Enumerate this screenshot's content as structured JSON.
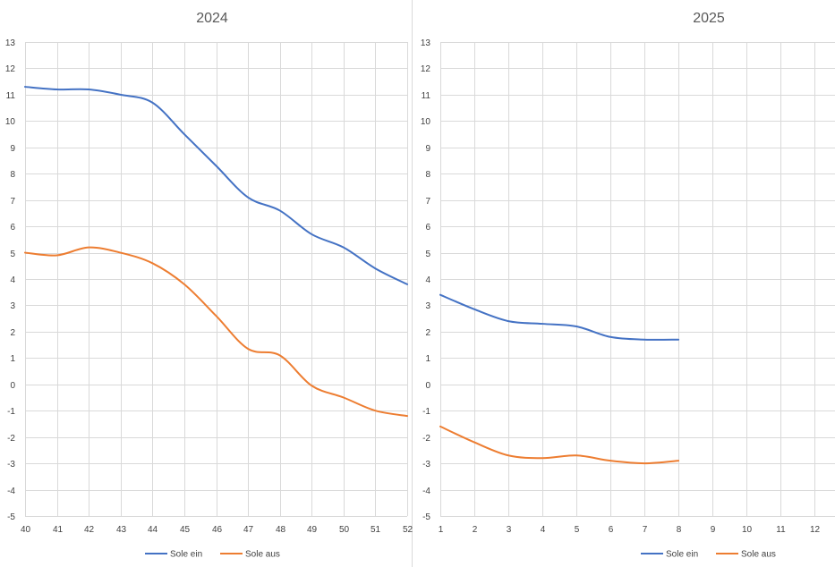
{
  "chart_data": [
    {
      "type": "line",
      "title": "2024",
      "xlabel": "",
      "ylabel": "",
      "x": [
        40,
        41,
        42,
        43,
        44,
        45,
        46,
        47,
        48,
        49,
        50,
        51,
        52
      ],
      "xlim": [
        40,
        52
      ],
      "ylim": [
        -5,
        13
      ],
      "yticks": [
        13,
        12,
        11,
        10,
        9,
        8,
        7,
        6,
        5,
        4,
        3,
        2,
        1,
        0,
        -1,
        -2,
        -3,
        -4,
        -5
      ],
      "xticks": [
        40,
        41,
        42,
        43,
        44,
        45,
        46,
        47,
        48,
        49,
        50,
        51,
        52
      ],
      "grid": true,
      "legend": "bottom",
      "series": [
        {
          "name": "Sole ein",
          "color": "#4472c4",
          "values": [
            11.3,
            11.2,
            11.2,
            11.0,
            10.7,
            9.5,
            8.3,
            7.1,
            6.6,
            5.7,
            5.2,
            4.4,
            3.8
          ]
        },
        {
          "name": "Sole aus",
          "color": "#ed7d31",
          "values": [
            5.0,
            4.9,
            5.2,
            5.0,
            4.6,
            3.8,
            2.6,
            1.35,
            1.1,
            -0.05,
            -0.5,
            -1.0,
            -1.2
          ]
        }
      ]
    },
    {
      "type": "line",
      "title": "2025",
      "xlabel": "",
      "ylabel": "",
      "x": [
        1,
        2,
        3,
        4,
        5,
        6,
        7,
        8
      ],
      "xlim": [
        1,
        12.6
      ],
      "ylim": [
        -5,
        13
      ],
      "yticks": [
        13,
        12,
        11,
        10,
        9,
        8,
        7,
        6,
        5,
        4,
        3,
        2,
        1,
        0,
        -1,
        -2,
        -3,
        -4,
        -5
      ],
      "xticks": [
        1,
        2,
        3,
        4,
        5,
        6,
        7,
        8,
        9,
        10,
        11,
        12
      ],
      "grid": true,
      "legend": "bottom",
      "series": [
        {
          "name": "Sole ein",
          "color": "#4472c4",
          "values": [
            3.4,
            2.85,
            2.4,
            2.3,
            2.2,
            1.8,
            1.7,
            1.7
          ]
        },
        {
          "name": "Sole aus",
          "color": "#ed7d31",
          "values": [
            -1.6,
            -2.2,
            -2.7,
            -2.8,
            -2.7,
            -2.9,
            -3.0,
            -2.9
          ]
        }
      ]
    }
  ]
}
